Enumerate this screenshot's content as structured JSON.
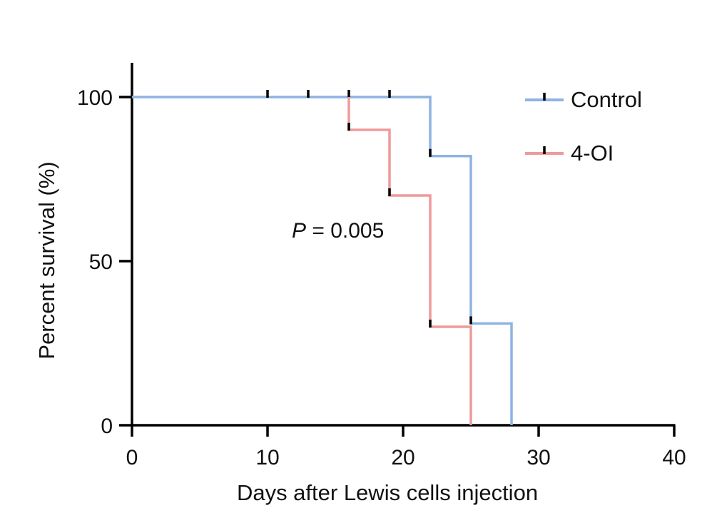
{
  "chart_data": {
    "type": "line",
    "subtype": "kaplan-meier-step",
    "title": "",
    "xlabel": "Days after Lewis cells injection",
    "ylabel": "Percent survival (%)",
    "xlim": [
      0,
      40
    ],
    "ylim": [
      0,
      100
    ],
    "xticks": [
      "0",
      "10",
      "20",
      "30",
      "40"
    ],
    "yticks": [
      "0",
      "50",
      "100"
    ],
    "grid": false,
    "legend_position": "top-right",
    "series": [
      {
        "name": "Control",
        "color": "#8db4e2",
        "steps": [
          [
            0,
            100
          ],
          [
            22,
            100
          ],
          [
            22,
            82
          ],
          [
            25,
            82
          ],
          [
            25,
            31
          ],
          [
            28,
            31
          ],
          [
            28,
            0
          ]
        ],
        "censor_marks": [
          [
            10,
            100
          ],
          [
            13,
            100
          ],
          [
            16,
            100
          ],
          [
            19,
            100
          ],
          [
            22,
            82
          ],
          [
            25,
            31
          ]
        ]
      },
      {
        "name": "4-OI",
        "color": "#ef9a9a",
        "steps": [
          [
            16,
            100
          ],
          [
            16,
            90
          ],
          [
            19,
            90
          ],
          [
            19,
            70
          ],
          [
            22,
            70
          ],
          [
            22,
            30
          ],
          [
            25,
            30
          ],
          [
            25,
            0
          ]
        ],
        "censor_marks": [
          [
            16,
            90
          ],
          [
            19,
            70
          ],
          [
            22,
            30
          ]
        ]
      }
    ],
    "annotation": {
      "p_symbol": "P",
      "rest": " = 0.005"
    }
  }
}
